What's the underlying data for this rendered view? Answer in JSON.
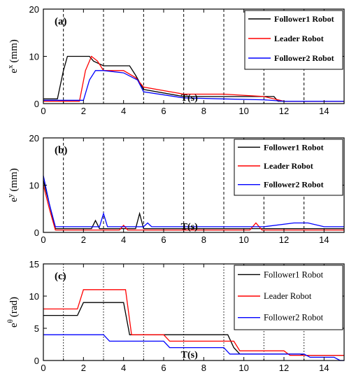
{
  "colors": {
    "follower1": "#000000",
    "leader": "#ff0000",
    "follower2": "#0000ff"
  },
  "chart_data": [
    {
      "type": "line",
      "panel_label": "(a)",
      "ylabel": "e",
      "ylabel_sup": "x",
      "ylabel_unit": "(mm)",
      "xlabel": "T(s)",
      "xlim": [
        0,
        15
      ],
      "ylim": [
        0,
        20
      ],
      "xticks": [
        0,
        2,
        4,
        6,
        8,
        10,
        12,
        14
      ],
      "yticks": [
        0,
        10,
        20
      ],
      "vlines": [
        1,
        3,
        5,
        7,
        9,
        11,
        13
      ],
      "vline_style": "dashed",
      "legend": [
        {
          "label": "Follower1 Robot",
          "color": "#000000"
        },
        {
          "label": "Leader Robot",
          "color": "#ff0000"
        },
        {
          "label": "Follower2 Robot",
          "color": "#0000ff"
        }
      ],
      "series": [
        {
          "name": "Follower1 Robot",
          "color": "#000000",
          "x": [
            0,
            0.7,
            1.0,
            1.2,
            2.3,
            2.5,
            3.0,
            4.3,
            4.6,
            5.0,
            7.0,
            9.0,
            11.5,
            11.7,
            15
          ],
          "y": [
            1,
            1,
            7,
            10,
            10,
            9,
            8,
            8,
            6,
            3,
            1.5,
            1.5,
            1.5,
            0.5,
            0.5
          ]
        },
        {
          "name": "Leader Robot",
          "color": "#ff0000",
          "x": [
            0,
            1.8,
            2.1,
            2.4,
            2.7,
            3.0,
            4.0,
            4.6,
            5.0,
            7.0,
            9.0,
            11.0,
            12.0,
            15
          ],
          "y": [
            0.5,
            0.5,
            7,
            10,
            9,
            7,
            7,
            5.5,
            3.5,
            2,
            2,
            1.5,
            0.5,
            0.5
          ]
        },
        {
          "name": "Follower2 Robot",
          "color": "#0000ff",
          "x": [
            0,
            2.0,
            2.3,
            2.6,
            3.0,
            4.0,
            4.7,
            5.0,
            7.0,
            9.0,
            11.0,
            12.0,
            15
          ],
          "y": [
            0.7,
            0.7,
            5,
            7,
            7,
            6.5,
            5,
            2.5,
            1.2,
            1.0,
            0.8,
            0.5,
            0.5
          ]
        }
      ]
    },
    {
      "type": "line",
      "panel_label": "(b)",
      "ylabel": "e",
      "ylabel_sup": "y",
      "ylabel_unit": "(mm)",
      "xlabel": "T(s)",
      "xlim": [
        0,
        15
      ],
      "ylim": [
        0,
        20
      ],
      "xticks": [
        0,
        2,
        4,
        6,
        8,
        10,
        12,
        14
      ],
      "yticks": [
        0,
        10,
        20
      ],
      "vlines": [
        1,
        3,
        5,
        7,
        9,
        11,
        13
      ],
      "vline_style": "dashed",
      "legend": [
        {
          "label": "Follower1 Robot",
          "color": "#000000"
        },
        {
          "label": "Leader Robot",
          "color": "#ff0000"
        },
        {
          "label": "Follower2 Robot",
          "color": "#0000ff"
        }
      ],
      "series": [
        {
          "name": "Follower1 Robot",
          "color": "#000000",
          "x": [
            0,
            0.3,
            0.6,
            2.4,
            2.6,
            2.8,
            4.6,
            4.8,
            5.0,
            15
          ],
          "y": [
            11,
            6,
            0.8,
            0.8,
            2.5,
            0.8,
            0.8,
            4,
            0.8,
            0.8
          ]
        },
        {
          "name": "Leader Robot",
          "color": "#ff0000",
          "x": [
            0,
            0.3,
            0.6,
            3.8,
            4.0,
            4.2,
            10.3,
            10.6,
            10.9,
            15
          ],
          "y": [
            10,
            5,
            0.5,
            0.5,
            1.5,
            0.5,
            0.5,
            2,
            0.5,
            0.5
          ]
        },
        {
          "name": "Follower2 Robot",
          "color": "#0000ff",
          "x": [
            0,
            0.3,
            0.6,
            2.8,
            3.0,
            3.2,
            5.0,
            5.2,
            5.4,
            11.0,
            12.5,
            13.2,
            14.0,
            15
          ],
          "y": [
            12,
            6,
            1.2,
            1.2,
            4,
            1.2,
            1.2,
            2,
            1.2,
            1.2,
            2,
            2,
            1.2,
            1.2
          ]
        }
      ]
    },
    {
      "type": "line",
      "panel_label": "(c)",
      "ylabel": "e",
      "ylabel_sup": "θ",
      "ylabel_unit": "(rad)",
      "xlabel": "T(s)",
      "xlim": [
        0,
        15
      ],
      "ylim": [
        0,
        15
      ],
      "xticks": [
        0,
        2,
        4,
        6,
        8,
        10,
        12,
        14
      ],
      "yticks": [
        0,
        5,
        10,
        15
      ],
      "vlines": [
        1,
        3,
        5,
        7,
        9,
        11,
        13
      ],
      "vline_style": "dotted",
      "legend": [
        {
          "label": "Follower1 Robot",
          "color": "#000000"
        },
        {
          "label": "Leader Robot",
          "color": "#ff0000"
        },
        {
          "label": "Follower2 Robot",
          "color": "#0000ff"
        }
      ],
      "series": [
        {
          "name": "Follower1 Robot",
          "color": "#000000",
          "x": [
            0,
            1.7,
            2.0,
            4.0,
            4.3,
            9.2,
            9.5,
            9.8,
            12.8,
            13.0,
            15
          ],
          "y": [
            7,
            7,
            9,
            9,
            4,
            4,
            2,
            1,
            1,
            0.8,
            0.8
          ]
        },
        {
          "name": "Leader Robot",
          "color": "#ff0000",
          "x": [
            0,
            1.7,
            2.0,
            4.1,
            4.4,
            6.0,
            6.3,
            9.5,
            9.8,
            12.0,
            12.3,
            15
          ],
          "y": [
            8,
            8,
            11,
            11,
            4,
            4,
            3,
            3,
            1.5,
            1.5,
            0.8,
            0.8
          ]
        },
        {
          "name": "Follower2 Robot",
          "color": "#0000ff",
          "x": [
            0,
            3.0,
            3.3,
            6.0,
            6.3,
            9.0,
            9.3,
            13.0,
            13.3,
            14.5,
            14.8,
            15
          ],
          "y": [
            4,
            4,
            3,
            3,
            2,
            2,
            1,
            1,
            0.5,
            0.5,
            0,
            0
          ]
        }
      ]
    }
  ]
}
